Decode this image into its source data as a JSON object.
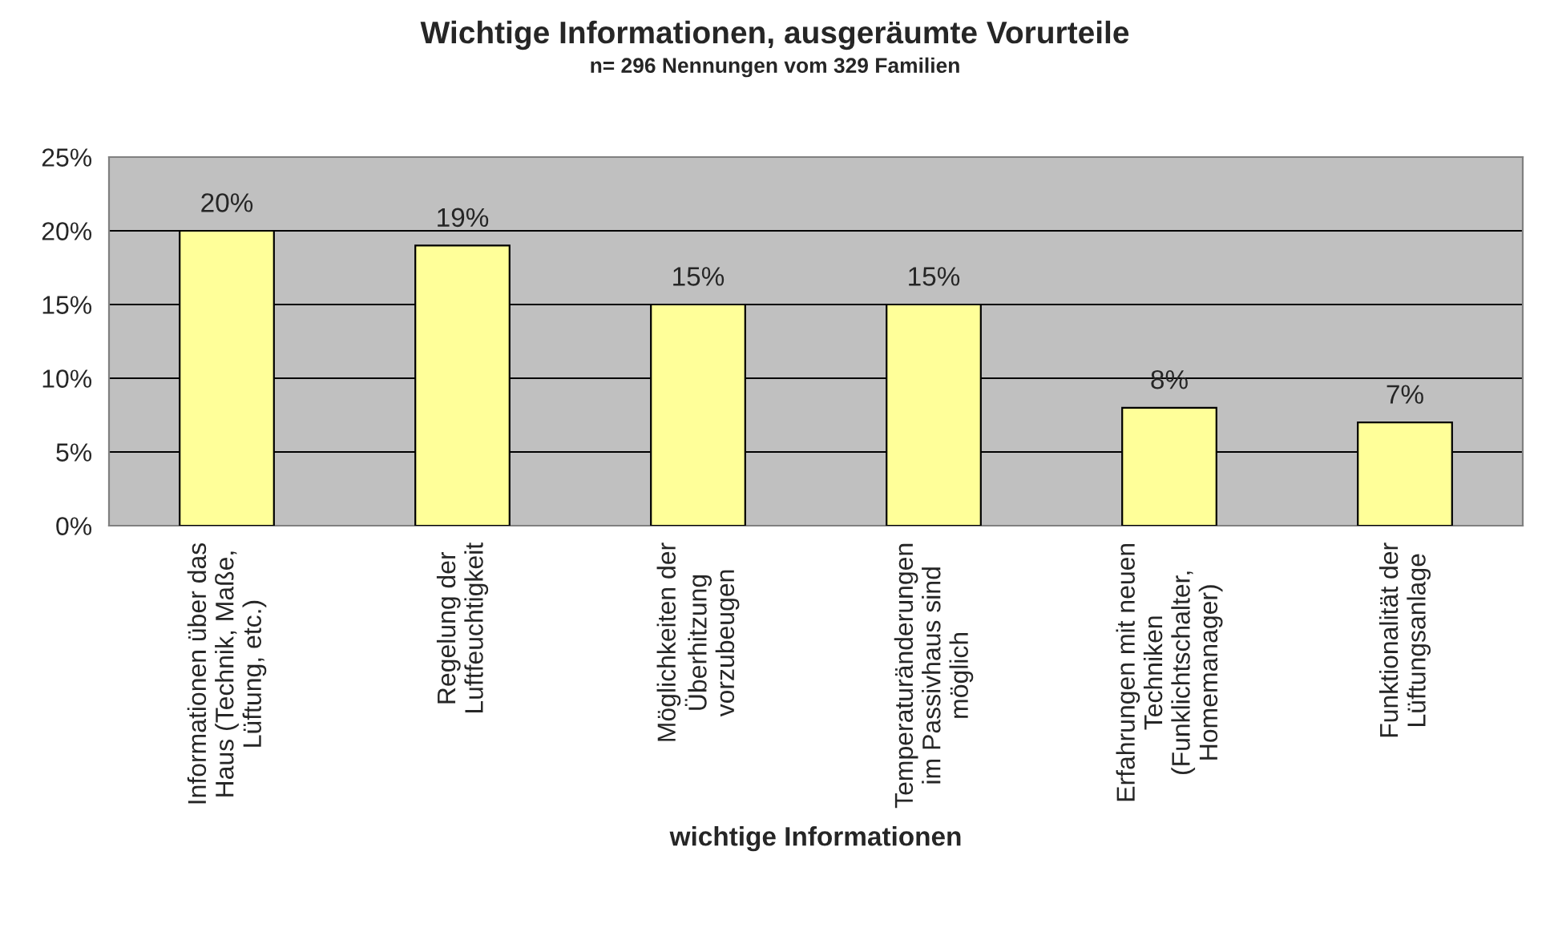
{
  "chart_data": {
    "type": "bar",
    "title": "Wichtige Informationen, ausgeräumte Vorurteile",
    "subtitle": "n= 296 Nennungen vom 329 Familien",
    "xlabel": "wichtige Informationen",
    "categories": [
      "Informationen über das\nHaus (Technik, Maße,\nLüftung, etc.)",
      "Regelung der\nLuftfeuchtigkeit",
      "Möglichkeiten der\nÜberhitzung\nvorzubeugen",
      "Temperaturänderungen\nim Passivhaus sind\nmöglich",
      "Erfahrungen mit neuen\nTechniken\n(Funklichtschalter,\nHomemanager)",
      "Funktionalität der\nLüftungsanlage"
    ],
    "values": [
      20,
      19,
      15,
      15,
      8,
      7
    ],
    "color": "#ffff99",
    "value_labels": [
      "20%",
      "19%",
      "15%",
      "15%",
      "8%",
      "7%"
    ],
    "ylim": [
      0,
      25
    ],
    "yticks": [
      {
        "value": 0,
        "label": "0%"
      },
      {
        "value": 5,
        "label": "5%"
      },
      {
        "value": 10,
        "label": "10%"
      },
      {
        "value": 15,
        "label": "15%"
      },
      {
        "value": 20,
        "label": "20%"
      },
      {
        "value": 25,
        "label": "25%"
      }
    ],
    "grid": "y",
    "legend": false
  }
}
